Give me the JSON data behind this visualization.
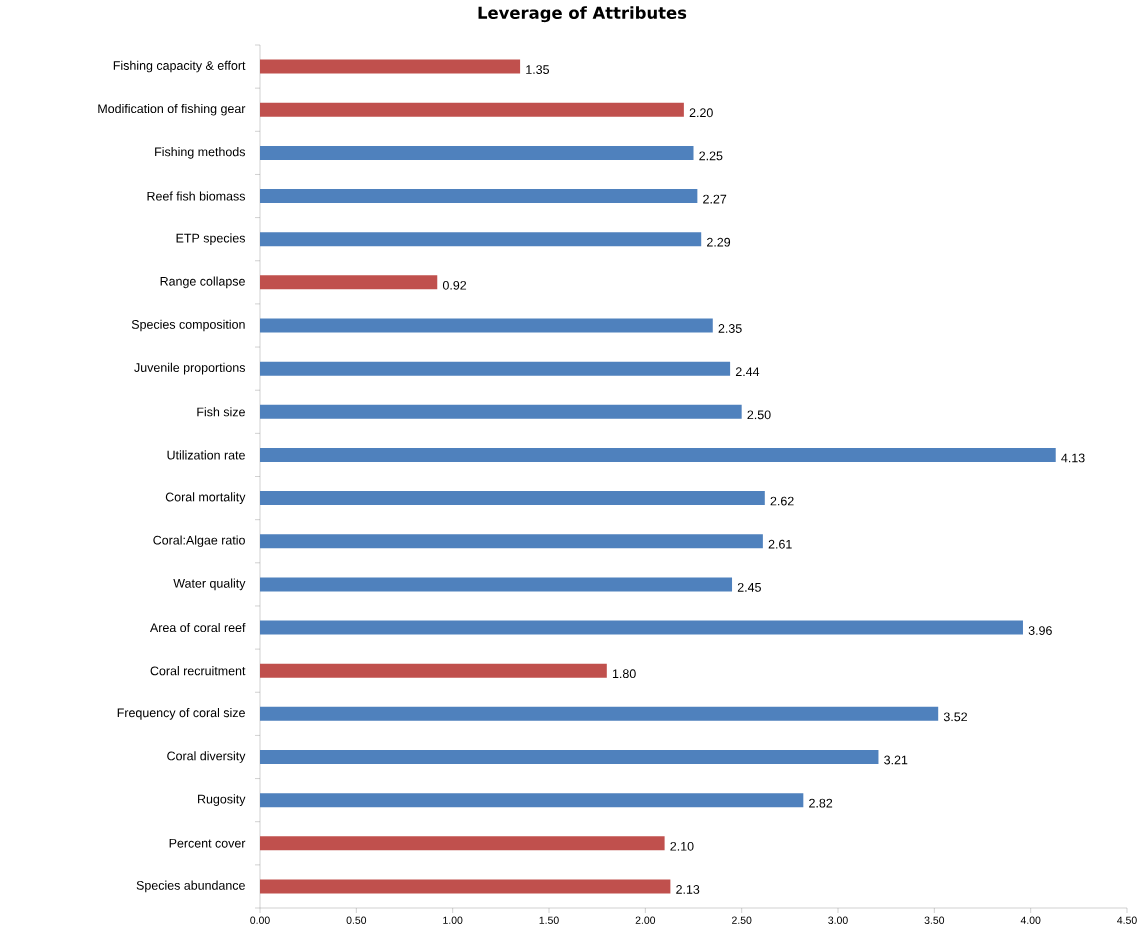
{
  "chart_data": {
    "type": "bar",
    "orientation": "horizontal",
    "title": "Leverage of Attributes",
    "categories": [
      "Fishing capacity & effort",
      "Modification of fishing gear",
      "Fishing methods",
      "Reef fish biomass",
      "ETP species",
      "Range collapse",
      "Species composition",
      "Juvenile proportions",
      "Fish size",
      "Utilization rate",
      "Coral mortality",
      "Coral:Algae ratio",
      "Water quality",
      "Area of coral reef",
      "Coral recruitment",
      "Frequency of coral size",
      "Coral diversity",
      "Rugosity",
      "Percent cover",
      "Species abundance"
    ],
    "values": [
      1.35,
      2.2,
      2.25,
      2.27,
      2.29,
      0.92,
      2.35,
      2.44,
      2.5,
      4.13,
      2.62,
      2.61,
      2.45,
      3.96,
      1.8,
      3.52,
      3.21,
      2.82,
      2.1,
      2.13
    ],
    "value_labels": [
      "1.35",
      "2.20",
      "2.25",
      "2.27",
      "2.29",
      "0.92",
      "2.35",
      "2.44",
      "2.50",
      "4.13",
      "2.62",
      "2.61",
      "2.45",
      "3.96",
      "1.80",
      "3.52",
      "3.21",
      "2.82",
      "2.10",
      "2.13"
    ],
    "colors": [
      "#c0504d",
      "#c0504d",
      "#4f81bd",
      "#4f81bd",
      "#4f81bd",
      "#c0504d",
      "#4f81bd",
      "#4f81bd",
      "#4f81bd",
      "#4f81bd",
      "#4f81bd",
      "#4f81bd",
      "#4f81bd",
      "#4f81bd",
      "#c0504d",
      "#4f81bd",
      "#4f81bd",
      "#4f81bd",
      "#c0504d",
      "#c0504d"
    ],
    "xlim": [
      0,
      4.5
    ],
    "xticks": [
      {
        "value": 0,
        "label": "0.00"
      },
      {
        "value": 0.5,
        "label": "0.50"
      },
      {
        "value": 1,
        "label": "1.00"
      },
      {
        "value": 1.5,
        "label": "1.50"
      },
      {
        "value": 2,
        "label": "2.00"
      },
      {
        "value": 2.5,
        "label": "2.50"
      },
      {
        "value": 3,
        "label": "3.00"
      },
      {
        "value": 3.5,
        "label": "3.50"
      },
      {
        "value": 4,
        "label": "4.00"
      },
      {
        "value": 4.5,
        "label": "4.50"
      }
    ],
    "grid": false
  }
}
